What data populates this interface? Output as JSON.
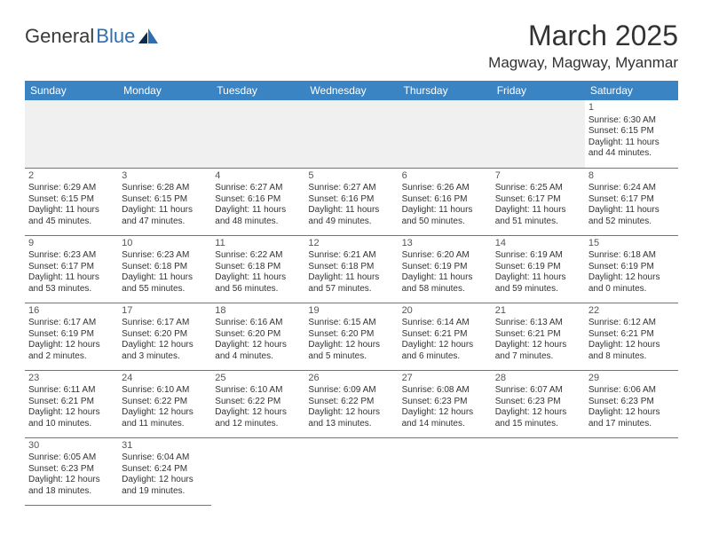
{
  "logo": {
    "textDark": "General",
    "textBlue": "Blue"
  },
  "title": "March 2025",
  "location": "Magway, Magway, Myanmar",
  "colors": {
    "headerBg": "#3b84c4",
    "headerText": "#ffffff",
    "rowBorder": "#3b84c4",
    "emptyWeekBg": "#f0f0f0",
    "bodyText": "#333333",
    "logoDark": "#3a3a3a",
    "logoBlue": "#2f6fb0"
  },
  "weekdays": [
    "Sunday",
    "Monday",
    "Tuesday",
    "Wednesday",
    "Thursday",
    "Friday",
    "Saturday"
  ],
  "weeks": [
    [
      null,
      null,
      null,
      null,
      null,
      null,
      {
        "n": "1",
        "sr": "Sunrise: 6:30 AM",
        "ss": "Sunset: 6:15 PM",
        "dl": "Daylight: 11 hours and 44 minutes."
      }
    ],
    [
      {
        "n": "2",
        "sr": "Sunrise: 6:29 AM",
        "ss": "Sunset: 6:15 PM",
        "dl": "Daylight: 11 hours and 45 minutes."
      },
      {
        "n": "3",
        "sr": "Sunrise: 6:28 AM",
        "ss": "Sunset: 6:15 PM",
        "dl": "Daylight: 11 hours and 47 minutes."
      },
      {
        "n": "4",
        "sr": "Sunrise: 6:27 AM",
        "ss": "Sunset: 6:16 PM",
        "dl": "Daylight: 11 hours and 48 minutes."
      },
      {
        "n": "5",
        "sr": "Sunrise: 6:27 AM",
        "ss": "Sunset: 6:16 PM",
        "dl": "Daylight: 11 hours and 49 minutes."
      },
      {
        "n": "6",
        "sr": "Sunrise: 6:26 AM",
        "ss": "Sunset: 6:16 PM",
        "dl": "Daylight: 11 hours and 50 minutes."
      },
      {
        "n": "7",
        "sr": "Sunrise: 6:25 AM",
        "ss": "Sunset: 6:17 PM",
        "dl": "Daylight: 11 hours and 51 minutes."
      },
      {
        "n": "8",
        "sr": "Sunrise: 6:24 AM",
        "ss": "Sunset: 6:17 PM",
        "dl": "Daylight: 11 hours and 52 minutes."
      }
    ],
    [
      {
        "n": "9",
        "sr": "Sunrise: 6:23 AM",
        "ss": "Sunset: 6:17 PM",
        "dl": "Daylight: 11 hours and 53 minutes."
      },
      {
        "n": "10",
        "sr": "Sunrise: 6:23 AM",
        "ss": "Sunset: 6:18 PM",
        "dl": "Daylight: 11 hours and 55 minutes."
      },
      {
        "n": "11",
        "sr": "Sunrise: 6:22 AM",
        "ss": "Sunset: 6:18 PM",
        "dl": "Daylight: 11 hours and 56 minutes."
      },
      {
        "n": "12",
        "sr": "Sunrise: 6:21 AM",
        "ss": "Sunset: 6:18 PM",
        "dl": "Daylight: 11 hours and 57 minutes."
      },
      {
        "n": "13",
        "sr": "Sunrise: 6:20 AM",
        "ss": "Sunset: 6:19 PM",
        "dl": "Daylight: 11 hours and 58 minutes."
      },
      {
        "n": "14",
        "sr": "Sunrise: 6:19 AM",
        "ss": "Sunset: 6:19 PM",
        "dl": "Daylight: 11 hours and 59 minutes."
      },
      {
        "n": "15",
        "sr": "Sunrise: 6:18 AM",
        "ss": "Sunset: 6:19 PM",
        "dl": "Daylight: 12 hours and 0 minutes."
      }
    ],
    [
      {
        "n": "16",
        "sr": "Sunrise: 6:17 AM",
        "ss": "Sunset: 6:19 PM",
        "dl": "Daylight: 12 hours and 2 minutes."
      },
      {
        "n": "17",
        "sr": "Sunrise: 6:17 AM",
        "ss": "Sunset: 6:20 PM",
        "dl": "Daylight: 12 hours and 3 minutes."
      },
      {
        "n": "18",
        "sr": "Sunrise: 6:16 AM",
        "ss": "Sunset: 6:20 PM",
        "dl": "Daylight: 12 hours and 4 minutes."
      },
      {
        "n": "19",
        "sr": "Sunrise: 6:15 AM",
        "ss": "Sunset: 6:20 PM",
        "dl": "Daylight: 12 hours and 5 minutes."
      },
      {
        "n": "20",
        "sr": "Sunrise: 6:14 AM",
        "ss": "Sunset: 6:21 PM",
        "dl": "Daylight: 12 hours and 6 minutes."
      },
      {
        "n": "21",
        "sr": "Sunrise: 6:13 AM",
        "ss": "Sunset: 6:21 PM",
        "dl": "Daylight: 12 hours and 7 minutes."
      },
      {
        "n": "22",
        "sr": "Sunrise: 6:12 AM",
        "ss": "Sunset: 6:21 PM",
        "dl": "Daylight: 12 hours and 8 minutes."
      }
    ],
    [
      {
        "n": "23",
        "sr": "Sunrise: 6:11 AM",
        "ss": "Sunset: 6:21 PM",
        "dl": "Daylight: 12 hours and 10 minutes."
      },
      {
        "n": "24",
        "sr": "Sunrise: 6:10 AM",
        "ss": "Sunset: 6:22 PM",
        "dl": "Daylight: 12 hours and 11 minutes."
      },
      {
        "n": "25",
        "sr": "Sunrise: 6:10 AM",
        "ss": "Sunset: 6:22 PM",
        "dl": "Daylight: 12 hours and 12 minutes."
      },
      {
        "n": "26",
        "sr": "Sunrise: 6:09 AM",
        "ss": "Sunset: 6:22 PM",
        "dl": "Daylight: 12 hours and 13 minutes."
      },
      {
        "n": "27",
        "sr": "Sunrise: 6:08 AM",
        "ss": "Sunset: 6:23 PM",
        "dl": "Daylight: 12 hours and 14 minutes."
      },
      {
        "n": "28",
        "sr": "Sunrise: 6:07 AM",
        "ss": "Sunset: 6:23 PM",
        "dl": "Daylight: 12 hours and 15 minutes."
      },
      {
        "n": "29",
        "sr": "Sunrise: 6:06 AM",
        "ss": "Sunset: 6:23 PM",
        "dl": "Daylight: 12 hours and 17 minutes."
      }
    ],
    [
      {
        "n": "30",
        "sr": "Sunrise: 6:05 AM",
        "ss": "Sunset: 6:23 PM",
        "dl": "Daylight: 12 hours and 18 minutes."
      },
      {
        "n": "31",
        "sr": "Sunrise: 6:04 AM",
        "ss": "Sunset: 6:24 PM",
        "dl": "Daylight: 12 hours and 19 minutes."
      },
      null,
      null,
      null,
      null,
      null
    ]
  ]
}
